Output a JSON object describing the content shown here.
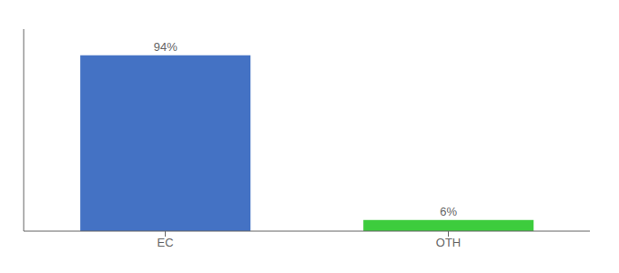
{
  "chart_data": {
    "type": "bar",
    "categories": [
      "EC",
      "OTH"
    ],
    "values": [
      94,
      6
    ],
    "value_labels": [
      "94%",
      "6%"
    ],
    "data_labels": true,
    "colors": [
      "#4472c4",
      "#3dcc3d"
    ],
    "ylim": [
      0,
      108
    ],
    "tick_labels": "x",
    "grid": false
  }
}
